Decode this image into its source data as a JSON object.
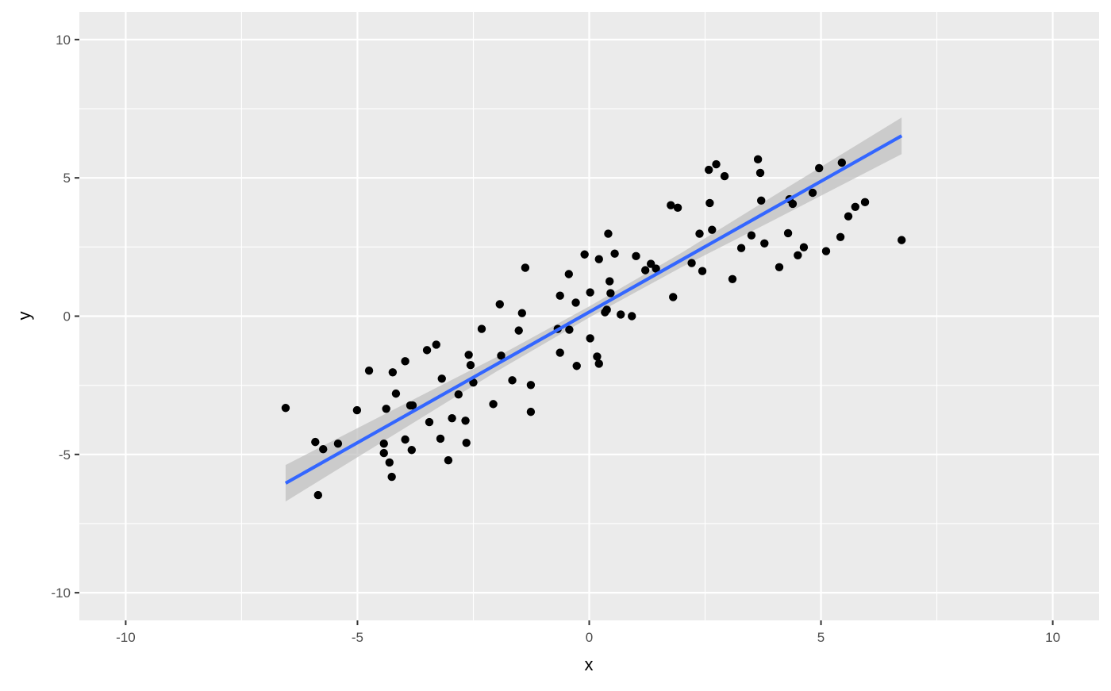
{
  "chart_data": {
    "type": "scatter",
    "title": "",
    "xlabel": "x",
    "ylabel": "y",
    "xlim": [
      -11,
      11
    ],
    "ylim": [
      -11,
      11
    ],
    "x_ticks": [
      -10,
      -5,
      0,
      5,
      10
    ],
    "y_ticks": [
      -10,
      -5,
      0,
      5,
      10
    ],
    "x_tick_labels": [
      "-10",
      "-5",
      "0",
      "5",
      "10"
    ],
    "y_tick_labels": [
      "-10",
      "-5",
      "0",
      "5",
      "10"
    ],
    "minor_grid": [
      -7.5,
      -2.5,
      2.5,
      7.5
    ],
    "grid": true,
    "colors": {
      "panel": "#EBEBEB",
      "grid": "#FFFFFF",
      "points": "#000000",
      "line": "#3366FF",
      "band": "#BEBEBE"
    },
    "points": [
      [
        -6.55,
        -3.32
      ],
      [
        -5.91,
        -4.55
      ],
      [
        -5.85,
        -6.47
      ],
      [
        -5.74,
        -4.81
      ],
      [
        -5.42,
        -4.61
      ],
      [
        -5.01,
        -3.4
      ],
      [
        -4.75,
        -1.97
      ],
      [
        -4.43,
        -4.61
      ],
      [
        -4.43,
        -4.95
      ],
      [
        -4.38,
        -3.35
      ],
      [
        -4.31,
        -5.29
      ],
      [
        -4.26,
        -5.81
      ],
      [
        -4.24,
        -2.03
      ],
      [
        -4.17,
        -2.8
      ],
      [
        -3.97,
        -1.63
      ],
      [
        -3.97,
        -4.46
      ],
      [
        -3.86,
        -3.23
      ],
      [
        -3.81,
        -3.23
      ],
      [
        -3.83,
        -4.84
      ],
      [
        -3.5,
        -1.23
      ],
      [
        -3.45,
        -3.83
      ],
      [
        -3.3,
        -1.03
      ],
      [
        -3.21,
        -4.43
      ],
      [
        -3.18,
        -2.26
      ],
      [
        -3.04,
        -5.21
      ],
      [
        -2.96,
        -3.69
      ],
      [
        -2.82,
        -2.83
      ],
      [
        -2.67,
        -3.78
      ],
      [
        -2.65,
        -4.58
      ],
      [
        -2.6,
        -1.4
      ],
      [
        -2.56,
        -1.77
      ],
      [
        -2.5,
        -2.4
      ],
      [
        -2.32,
        -0.46
      ],
      [
        -2.07,
        -3.18
      ],
      [
        -1.93,
        0.43
      ],
      [
        -1.9,
        -1.43
      ],
      [
        -1.66,
        -2.32
      ],
      [
        -1.52,
        -0.52
      ],
      [
        -1.45,
        0.11
      ],
      [
        -1.38,
        1.75
      ],
      [
        -1.26,
        -2.49
      ],
      [
        -1.26,
        -3.46
      ],
      [
        -0.68,
        -0.46
      ],
      [
        -0.63,
        0.74
      ],
      [
        -0.63,
        -1.32
      ],
      [
        -0.44,
        1.52
      ],
      [
        -0.43,
        -0.49
      ],
      [
        -0.29,
        0.49
      ],
      [
        -0.27,
        -1.8
      ],
      [
        -0.1,
        2.23
      ],
      [
        0.02,
        0.86
      ],
      [
        0.02,
        -0.8
      ],
      [
        0.17,
        -1.46
      ],
      [
        0.21,
        -1.72
      ],
      [
        0.21,
        2.06
      ],
      [
        0.34,
        0.14
      ],
      [
        0.38,
        0.23
      ],
      [
        0.41,
        2.98
      ],
      [
        0.44,
        1.26
      ],
      [
        0.46,
        0.83
      ],
      [
        0.55,
        2.26
      ],
      [
        0.68,
        0.06
      ],
      [
        0.92,
        0.0
      ],
      [
        1.01,
        2.17
      ],
      [
        1.21,
        1.66
      ],
      [
        1.33,
        1.89
      ],
      [
        1.44,
        1.72
      ],
      [
        1.76,
        4.01
      ],
      [
        1.81,
        0.69
      ],
      [
        1.91,
        3.92
      ],
      [
        2.21,
        1.92
      ],
      [
        2.38,
        2.98
      ],
      [
        2.44,
        1.63
      ],
      [
        2.58,
        5.29
      ],
      [
        2.6,
        4.09
      ],
      [
        2.65,
        3.12
      ],
      [
        2.74,
        5.49
      ],
      [
        2.92,
        5.06
      ],
      [
        3.09,
        1.34
      ],
      [
        3.28,
        2.46
      ],
      [
        3.5,
        2.92
      ],
      [
        3.64,
        5.67
      ],
      [
        3.69,
        5.18
      ],
      [
        3.71,
        4.18
      ],
      [
        3.78,
        2.63
      ],
      [
        4.1,
        1.77
      ],
      [
        4.29,
        3.0
      ],
      [
        4.32,
        4.23
      ],
      [
        4.39,
        4.06
      ],
      [
        4.5,
        2.2
      ],
      [
        4.63,
        2.49
      ],
      [
        4.82,
        4.46
      ],
      [
        4.96,
        5.35
      ],
      [
        5.11,
        2.35
      ],
      [
        5.42,
        2.86
      ],
      [
        5.45,
        5.55
      ],
      [
        5.59,
        3.61
      ],
      [
        5.74,
        3.95
      ],
      [
        5.95,
        4.12
      ],
      [
        6.74,
        2.75
      ]
    ],
    "smooth": {
      "method": "lm",
      "x": [
        -6.55,
        -4,
        -2,
        0,
        2,
        4,
        6.74
      ],
      "y": [
        -6.04,
        -3.63,
        -1.74,
        0.15,
        2.04,
        3.93,
        6.52
      ],
      "ymin": [
        -6.7,
        -4.07,
        -2.0,
        -0.05,
        1.78,
        3.49,
        5.86
      ],
      "ymax": [
        -5.38,
        -3.19,
        -1.48,
        0.35,
        2.3,
        4.37,
        7.18
      ]
    }
  }
}
